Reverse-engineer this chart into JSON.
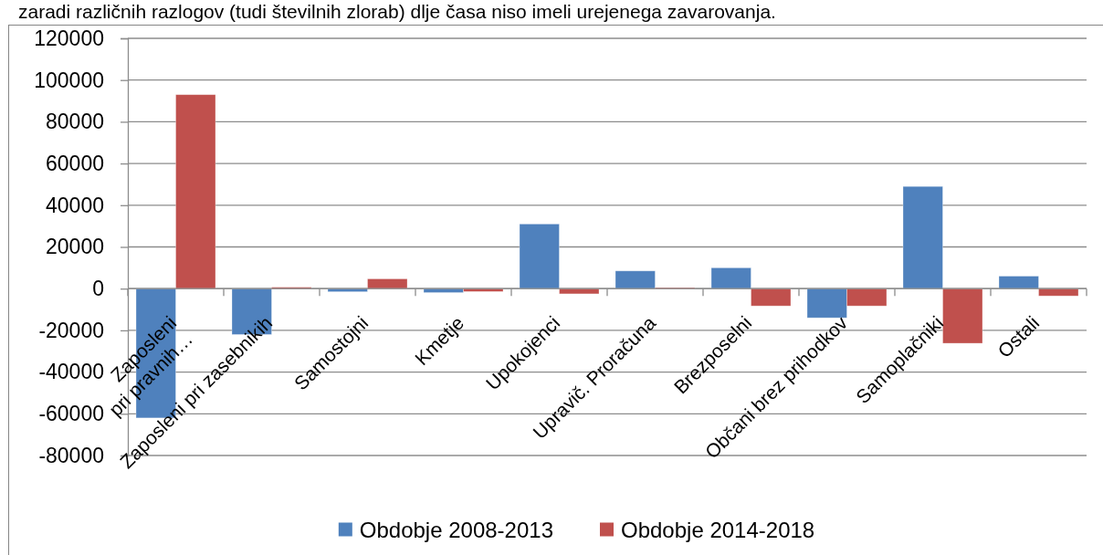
{
  "chart_data": {
    "type": "bar",
    "annotations": [
      "zaradi različnih razlogov (tudi številnih zlorab) dlje časa niso imeli urejenega zavarovanja."
    ],
    "categories": [
      "Zaposleni pri pravnih…",
      "Zaposleni pri zasebnikih",
      "Samostojni",
      "Kmetje",
      "Upokojenci",
      "Upravič. Proračuna",
      "Brezposelni",
      "Občani brez prihodkov",
      "Samoplačniki",
      "Ostali"
    ],
    "series": [
      {
        "name": "Obdobje 2008-2013",
        "color": "#4f81bd",
        "values": [
          -62000,
          -22000,
          -1500,
          -1900,
          31000,
          8500,
          10000,
          -14000,
          49000,
          6000
        ]
      },
      {
        "name": "Obdobje 2014-2018",
        "color": "#c0504d",
        "values": [
          93000,
          700,
          4700,
          -1400,
          -2500,
          500,
          -8300,
          -8300,
          -26200,
          -3500
        ]
      }
    ],
    "ylim": [
      -80000,
      120000
    ],
    "yticks": [
      -80000,
      -60000,
      -40000,
      -20000,
      0,
      20000,
      40000,
      60000,
      80000,
      100000,
      120000
    ],
    "grid": "y",
    "legend": "bottom"
  }
}
